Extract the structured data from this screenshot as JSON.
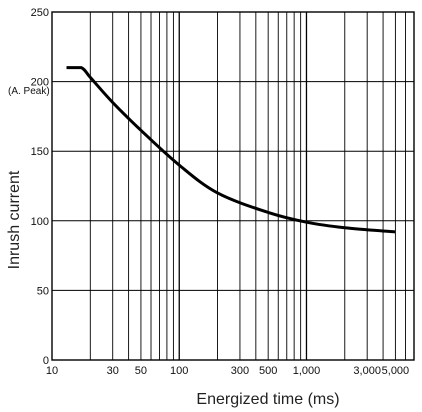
{
  "chart_data": {
    "type": "line",
    "title": "",
    "xlabel": "Energized time (ms)",
    "ylabel": "Inrush current",
    "ylabel_unit": "(A. Peak)",
    "xscale": "log",
    "xlim": [
      10,
      7000
    ],
    "ylim": [
      0,
      250
    ],
    "grid": true,
    "legend": "none",
    "x_ticks": [
      {
        "value": 10,
        "label": "10"
      },
      {
        "value": 30,
        "label": "30"
      },
      {
        "value": 50,
        "label": "50"
      },
      {
        "value": 100,
        "label": "100"
      },
      {
        "value": 300,
        "label": "300"
      },
      {
        "value": 500,
        "label": "500"
      },
      {
        "value": 1000,
        "label": "1,000"
      },
      {
        "value": 3000,
        "label": "3,000"
      },
      {
        "value": 5000,
        "label": "5,000"
      }
    ],
    "y_ticks": [
      {
        "value": 0,
        "label": "0"
      },
      {
        "value": 50,
        "label": "50"
      },
      {
        "value": 100,
        "label": "100"
      },
      {
        "value": 150,
        "label": "150"
      },
      {
        "value": 200,
        "label": "200"
      },
      {
        "value": 250,
        "label": "250"
      }
    ],
    "series": [
      {
        "color": "#000000",
        "x": [
          13,
          17,
          20,
          30,
          50,
          100,
          200,
          500,
          1000,
          2000,
          5000
        ],
        "y": [
          210,
          210,
          203,
          185,
          165,
          140,
          120,
          106,
          99,
          95,
          92
        ]
      }
    ]
  }
}
